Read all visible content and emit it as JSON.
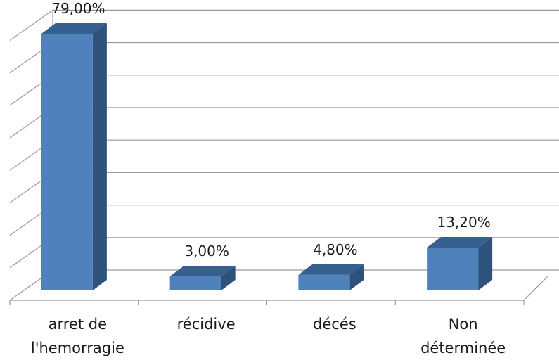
{
  "chart_data": {
    "type": "bar",
    "style": "3d-column",
    "categories": [
      [
        "arret de",
        "l'hemorragie"
      ],
      [
        "récidive"
      ],
      [
        "décés"
      ],
      [
        "Non",
        "déterminée"
      ]
    ],
    "values": [
      79.0,
      3.0,
      4.8,
      13.2
    ],
    "data_labels": [
      "79,00%",
      "3,00%",
      "4,80%",
      "13,20%"
    ],
    "title": "",
    "xlabel": "",
    "ylabel": "",
    "ylim": [
      0,
      80
    ],
    "gridlines": true,
    "legend": "none",
    "colors": {
      "bar_front": "#4f81bd",
      "bar_side": "#2f527d",
      "bar_top": "#36608f",
      "grid": "#9a9a9a",
      "text": "#1a1a1a"
    }
  }
}
